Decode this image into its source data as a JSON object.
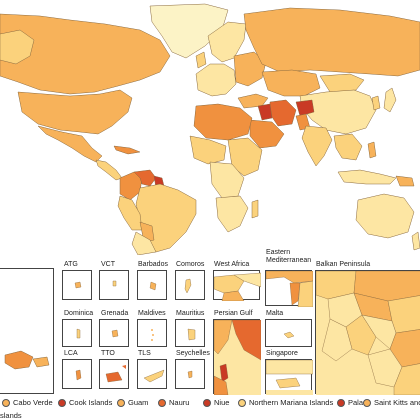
{
  "colors": {
    "ocean": "#ffffff",
    "border": "#8a6a40",
    "c1": "#fcf3c6",
    "c2": "#fde6a3",
    "c3": "#fbd27c",
    "c4": "#f7b25a",
    "c5": "#f0913f",
    "c6": "#e5692f",
    "c7": "#c93a25",
    "c8": "#9e1f1f"
  },
  "insets": {
    "atg": "ATG",
    "vct": "VCT",
    "barbados": "Barbados",
    "comoros": "Comoros",
    "west_africa": "West Africa",
    "eastern_med": "Eastern\nMediterranean",
    "balkan": "Balkan Peninsula",
    "dominica": "Dominica",
    "grenada": "Grenada",
    "maldives": "Maldives",
    "mauritius": "Mauritius",
    "persian_gulf": "Persian Gulf",
    "malta": "Malta",
    "lca": "LCA",
    "tto": "TTO",
    "tls": "TLS",
    "seychelles": "Seychelles",
    "singapore": "Singapore"
  },
  "legend": {
    "items": [
      {
        "label": "Cabo Verde",
        "color": "#f7b25a"
      },
      {
        "label": "Cook Islands",
        "color": "#c93a25"
      },
      {
        "label": "Guam",
        "color": "#f7b25a"
      },
      {
        "label": "Nauru",
        "color": "#e5692f"
      },
      {
        "label": "Niue",
        "color": "#c93a25"
      },
      {
        "label": "Northern Mariana Islands",
        "color": "#fbd27c"
      },
      {
        "label": "Palau",
        "color": "#c93a25"
      },
      {
        "label": "Saint Kitts and Ne",
        "color": "#f7b25a"
      }
    ],
    "continuation": "slands"
  }
}
